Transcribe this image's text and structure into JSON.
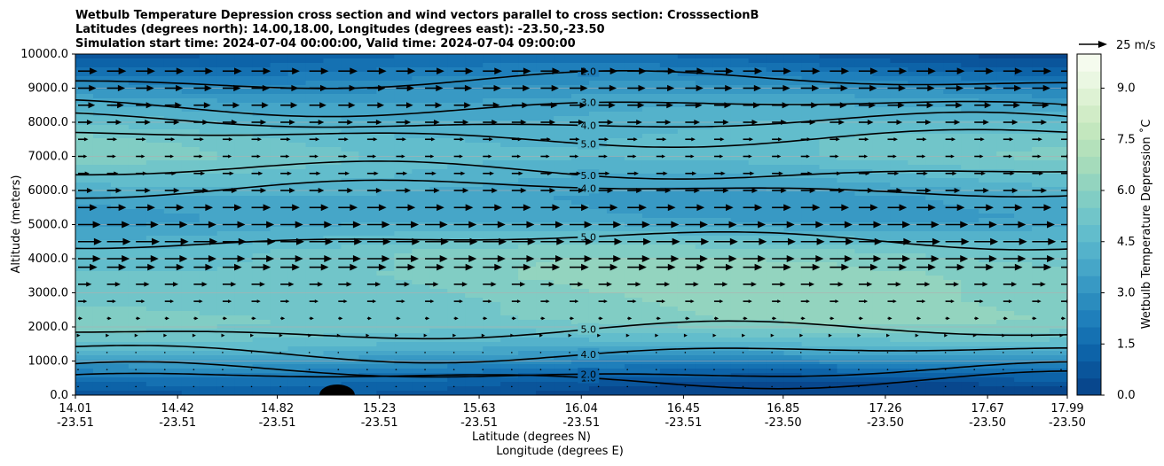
{
  "chart_data": {
    "type": "heatmap",
    "title_lines": [
      "Wetbulb Temperature Depression cross section and wind vectors parallel to cross section: CrosssectionB",
      "Latitudes (degrees north): 14.00,18.00, Longitudes (degrees east): -23.50,-23.50",
      "Simulation start time: 2024-07-04 00:00:00, Valid time: 2024-07-04 09:00:00"
    ],
    "xlabel": "Latitude (degrees N)",
    "xlabel2": "Longitude (degrees E)",
    "ylabel": "Altitude (meters)",
    "colorbar_label": "Wetbulb Temperature Depression ˚C",
    "quiver_key_label": "25 m/s",
    "x_ticks": [
      {
        "lat": "14.01",
        "lon": "-23.51"
      },
      {
        "lat": "14.42",
        "lon": "-23.51"
      },
      {
        "lat": "14.82",
        "lon": "-23.51"
      },
      {
        "lat": "15.23",
        "lon": "-23.51"
      },
      {
        "lat": "15.63",
        "lon": "-23.51"
      },
      {
        "lat": "16.04",
        "lon": "-23.51"
      },
      {
        "lat": "16.45",
        "lon": "-23.51"
      },
      {
        "lat": "16.85",
        "lon": "-23.50"
      },
      {
        "lat": "17.26",
        "lon": "-23.50"
      },
      {
        "lat": "17.67",
        "lon": "-23.50"
      },
      {
        "lat": "17.99",
        "lon": "-23.50"
      }
    ],
    "y_ticks": [
      "0.0",
      "1000.0",
      "2000.0",
      "3000.0",
      "4000.0",
      "5000.0",
      "6000.0",
      "7000.0",
      "8000.0",
      "9000.0",
      "10000.0"
    ],
    "ylim": [
      0,
      10000
    ],
    "colorbar_ticks": [
      "0.0",
      "1.5",
      "3.0",
      "4.5",
      "6.0",
      "7.5",
      "9.0"
    ],
    "colorbar_range": [
      0,
      10
    ],
    "colorbar_levels": 20,
    "colorbar_colors": [
      "#08478d",
      "#0a559b",
      "#0d63a8",
      "#1571b2",
      "#1f7fbb",
      "#2b8cbe",
      "#3899c4",
      "#46a6c8",
      "#54b2cb",
      "#62bdcc",
      "#71c5c9",
      "#81cdc4",
      "#93d4bf",
      "#a5dbbb",
      "#b4e1bb",
      "#c3e7be",
      "#d1ecc7",
      "#def2d4",
      "#eaf7e2",
      "#f5fbee"
    ],
    "grid": true,
    "vector_columns": 35,
    "vector_rows": 20,
    "wind_profile": [
      {
        "alt": 250,
        "u": 0
      },
      {
        "alt": 750,
        "u": 0.5
      },
      {
        "alt": 1250,
        "u": 1
      },
      {
        "alt": 1750,
        "u": 2
      },
      {
        "alt": 2250,
        "u": 4
      },
      {
        "alt": 2750,
        "u": 8
      },
      {
        "alt": 3250,
        "u": 12
      },
      {
        "alt": 3750,
        "u": 17
      },
      {
        "alt": 4000,
        "u": 20
      },
      {
        "alt": 4500,
        "u": 21
      },
      {
        "alt": 5000,
        "u": 20
      },
      {
        "alt": 5500,
        "u": 17
      },
      {
        "alt": 6000,
        "u": 13
      },
      {
        "alt": 6500,
        "u": 10
      },
      {
        "alt": 7000,
        "u": 8
      },
      {
        "alt": 7500,
        "u": 9
      },
      {
        "alt": 8000,
        "u": 13
      },
      {
        "alt": 8500,
        "u": 15
      },
      {
        "alt": 9000,
        "u": 16
      },
      {
        "alt": 9500,
        "u": 17
      }
    ],
    "field_bands": [
      {
        "alt": 0,
        "v": 0.3
      },
      {
        "alt": 300,
        "v": 0.8
      },
      {
        "alt": 600,
        "v": 1.5
      },
      {
        "alt": 1000,
        "v": 2.8
      },
      {
        "alt": 1400,
        "v": 4.2
      },
      {
        "alt": 1800,
        "v": 5.0
      },
      {
        "alt": 2200,
        "v": 5.6
      },
      {
        "alt": 2800,
        "v": 5.5
      },
      {
        "alt": 3500,
        "v": 5.7
      },
      {
        "alt": 4200,
        "v": 5.4
      },
      {
        "alt": 4700,
        "v": 4.4
      },
      {
        "alt": 5200,
        "v": 3.6
      },
      {
        "alt": 5800,
        "v": 3.8
      },
      {
        "alt": 6400,
        "v": 4.6
      },
      {
        "alt": 7000,
        "v": 5.3
      },
      {
        "alt": 7500,
        "v": 5.1
      },
      {
        "alt": 8000,
        "v": 4.5
      },
      {
        "alt": 8600,
        "v": 3.7
      },
      {
        "alt": 9200,
        "v": 2.5
      },
      {
        "alt": 9700,
        "v": 1.4
      },
      {
        "alt": 10000,
        "v": 0.9
      }
    ],
    "contours": [
      {
        "level": "1.0",
        "label_lat": "16.04",
        "label_alt": 480
      },
      {
        "level": "2.0",
        "label_lat": "16.04",
        "label_alt": 680
      },
      {
        "level": "4.0",
        "label_lat": "16.04",
        "label_alt": 1240
      },
      {
        "level": "5.0",
        "label_lat": "16.04",
        "label_alt": 1880
      },
      {
        "level": "5.0",
        "label_lat": "16.04",
        "label_alt": 4550
      },
      {
        "level": "4.0",
        "label_lat": "16.04",
        "label_alt": 6060
      },
      {
        "level": "5.0",
        "label_lat": "16.04",
        "label_alt": 6570
      },
      {
        "level": "5.0",
        "label_lat": "16.04",
        "label_alt": 7560
      },
      {
        "level": "4.0",
        "label_lat": "16.04",
        "label_alt": 8000
      },
      {
        "level": "3.0",
        "label_lat": "16.04",
        "label_alt": 8460
      },
      {
        "level": "2.0",
        "label_lat": "16.04",
        "label_alt": 9220
      }
    ]
  }
}
